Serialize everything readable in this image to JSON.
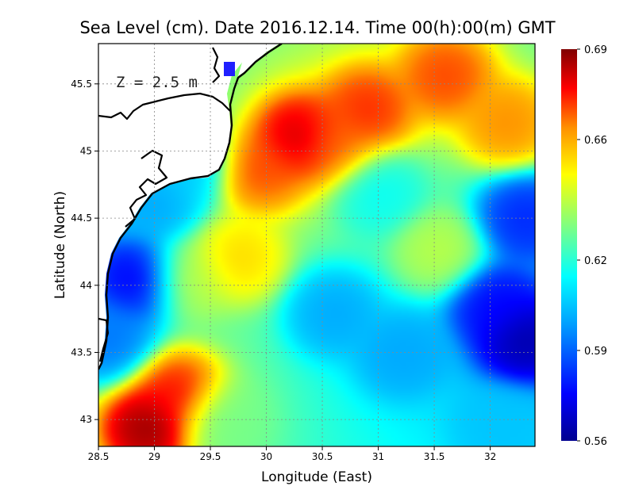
{
  "figure": {
    "title": "Sea Level (cm). Date 2016.12.14. Time 00(h):00(m) GMT",
    "depth_note": "Z = 2.5 m",
    "xlabel": "Longitude (East)",
    "ylabel": "Latitude (North)"
  },
  "chart_data": {
    "type": "heatmap",
    "x_range": [
      28.5,
      32.4
    ],
    "y_range": [
      42.8,
      45.8
    ],
    "x_ticks": [
      28.5,
      29,
      29.5,
      30,
      30.5,
      31,
      31.5,
      32
    ],
    "x_tick_labels": [
      "28.5",
      "29",
      "29.5",
      "30",
      "30.5",
      "31",
      "31.5",
      "32"
    ],
    "y_ticks": [
      43,
      43.5,
      44,
      44.5,
      45,
      45.5
    ],
    "y_tick_labels": [
      "43",
      "43.5",
      "44",
      "44.5",
      "45",
      "45.5"
    ],
    "grid": true,
    "colorbar": {
      "range": [
        0.56,
        0.69
      ],
      "ticks": [
        0.56,
        0.59,
        0.62,
        0.66,
        0.69
      ],
      "tick_labels": [
        "0.56",
        "0.59",
        "0.62",
        "0.66",
        "0.69"
      ],
      "colors": [
        "#00008f",
        "#0000ff",
        "#00a0ff",
        "#00ffff",
        "#80ff80",
        "#ffff00",
        "#ff9000",
        "#ff0000",
        "#800000"
      ]
    },
    "features": [
      {
        "lon": 30.3,
        "lat": 45.1,
        "value": 0.685
      },
      {
        "lon": 30.9,
        "lat": 45.3,
        "value": 0.675
      },
      {
        "lon": 31.6,
        "lat": 45.55,
        "value": 0.672
      },
      {
        "lon": 32.15,
        "lat": 45.2,
        "value": 0.665
      },
      {
        "lon": 29.95,
        "lat": 44.85,
        "value": 0.672
      },
      {
        "lon": 30.6,
        "lat": 45.05,
        "value": 0.668
      },
      {
        "lon": 28.95,
        "lat": 42.95,
        "value": 0.69
      },
      {
        "lon": 29.2,
        "lat": 43.2,
        "value": 0.678
      },
      {
        "lon": 29.75,
        "lat": 44.2,
        "value": 0.655
      },
      {
        "lon": 29.3,
        "lat": 44.05,
        "value": 0.64
      },
      {
        "lon": 28.85,
        "lat": 44.05,
        "value": 0.572
      },
      {
        "lon": 32.3,
        "lat": 43.6,
        "value": 0.562
      },
      {
        "lon": 32.05,
        "lat": 43.85,
        "value": 0.575
      },
      {
        "lon": 32.3,
        "lat": 44.5,
        "value": 0.58
      },
      {
        "lon": 31.55,
        "lat": 44.25,
        "value": 0.64
      },
      {
        "lon": 30.6,
        "lat": 43.8,
        "value": 0.6
      },
      {
        "lon": 31.2,
        "lat": 43.5,
        "value": 0.6
      },
      {
        "lon": 28.6,
        "lat": 43.6,
        "value": 0.592
      },
      {
        "lon": 29.0,
        "lat": 44.6,
        "value": 0.6
      },
      {
        "lon": 29.3,
        "lat": 44.9,
        "value": 0.605
      },
      {
        "lon": 31.0,
        "lat": 44.7,
        "value": 0.615
      },
      {
        "lon": 32.1,
        "lat": 42.95,
        "value": 0.605
      },
      {
        "lon": 29.6,
        "lat": 43.0,
        "value": 0.63
      }
    ],
    "background_value": 0.615
  }
}
